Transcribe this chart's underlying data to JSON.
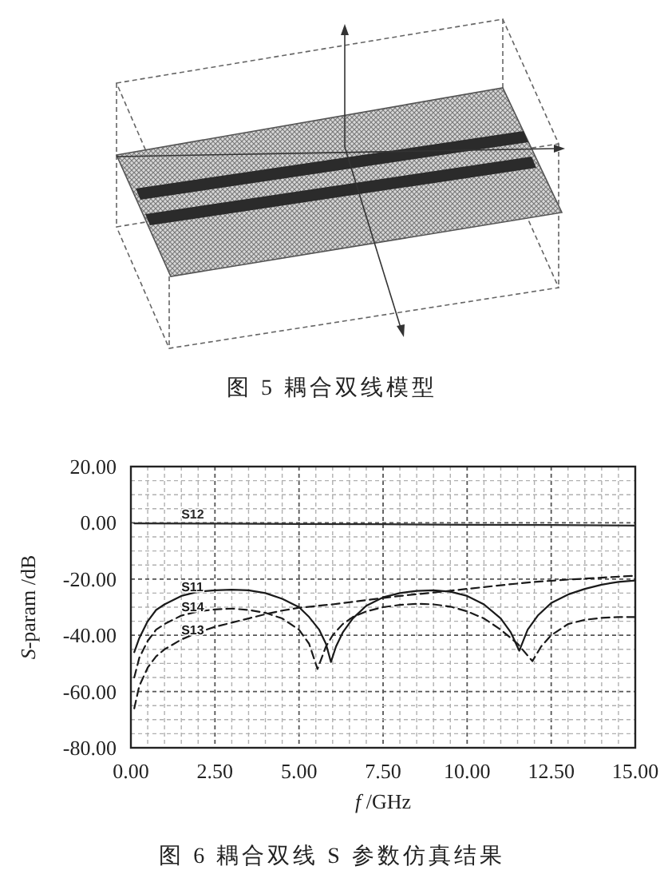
{
  "chart_data": {
    "type": "line",
    "title": "图 6 耦合双线 S 参数仿真结果",
    "xlabel": "f /GHz",
    "ylabel": "S-param /dB",
    "annotations": [
      "图 5 耦合双线模型"
    ],
    "xlim": [
      0,
      15
    ],
    "ylim": [
      -80,
      20
    ],
    "xticks": [
      {
        "value": 0,
        "label": "0.00"
      },
      {
        "value": 0.5,
        "label": null
      },
      {
        "value": 1,
        "label": null
      },
      {
        "value": 1.5,
        "label": null
      },
      {
        "value": 2,
        "label": null
      },
      {
        "value": 2.5,
        "label": "2.50"
      },
      {
        "value": 3,
        "label": null
      },
      {
        "value": 3.5,
        "label": null
      },
      {
        "value": 4,
        "label": null
      },
      {
        "value": 4.5,
        "label": null
      },
      {
        "value": 5,
        "label": "5.00"
      },
      {
        "value": 5.5,
        "label": null
      },
      {
        "value": 6,
        "label": null
      },
      {
        "value": 6.5,
        "label": null
      },
      {
        "value": 7,
        "label": null
      },
      {
        "value": 7.5,
        "label": "7.50"
      },
      {
        "value": 8,
        "label": null
      },
      {
        "value": 8.5,
        "label": null
      },
      {
        "value": 9,
        "label": null
      },
      {
        "value": 9.5,
        "label": null
      },
      {
        "value": 10,
        "label": "10.00"
      },
      {
        "value": 10.5,
        "label": null
      },
      {
        "value": 11,
        "label": null
      },
      {
        "value": 11.5,
        "label": null
      },
      {
        "value": 12,
        "label": null
      },
      {
        "value": 12.5,
        "label": "12.50"
      },
      {
        "value": 13,
        "label": null
      },
      {
        "value": 13.5,
        "label": null
      },
      {
        "value": 14,
        "label": null
      },
      {
        "value": 14.5,
        "label": null
      },
      {
        "value": 15,
        "label": "15.00"
      }
    ],
    "yticks": [
      {
        "value": 20,
        "label": "20.00"
      },
      {
        "value": 15,
        "label": null
      },
      {
        "value": 10,
        "label": null
      },
      {
        "value": 5,
        "label": null
      },
      {
        "value": 0,
        "label": "0.00"
      },
      {
        "value": -5,
        "label": null
      },
      {
        "value": -10,
        "label": null
      },
      {
        "value": -15,
        "label": null
      },
      {
        "value": -20,
        "label": "-20.00"
      },
      {
        "value": -25,
        "label": null
      },
      {
        "value": -30,
        "label": null
      },
      {
        "value": -35,
        "label": null
      },
      {
        "value": -40,
        "label": "-40.00"
      },
      {
        "value": -45,
        "label": null
      },
      {
        "value": -50,
        "label": null
      },
      {
        "value": -55,
        "label": null
      },
      {
        "value": -60,
        "label": "-60.00"
      },
      {
        "value": -65,
        "label": null
      },
      {
        "value": -70,
        "label": null
      },
      {
        "value": -75,
        "label": null
      },
      {
        "value": -80,
        "label": "-80.00"
      }
    ],
    "grid": true,
    "series": [
      {
        "name": "S12",
        "color": "#2a2a2a",
        "line_style": "solid",
        "x": [
          0.1,
          2.5,
          5,
          7.5,
          10,
          12.5,
          15
        ],
        "values": [
          -0.2,
          -0.3,
          -0.4,
          -0.5,
          -0.7,
          -0.8,
          -1.0
        ]
      },
      {
        "name": "S11",
        "color": "#1a1a1a",
        "line_style": "solid",
        "x": [
          0.1,
          0.25,
          0.5,
          0.75,
          1.0,
          1.5,
          2.0,
          2.5,
          3.0,
          3.5,
          4.0,
          4.5,
          5.0,
          5.3,
          5.6,
          5.8,
          5.95,
          6.1,
          6.3,
          6.6,
          7.0,
          7.5,
          8.0,
          8.5,
          9.0,
          9.5,
          10.0,
          10.5,
          11.0,
          11.3,
          11.55,
          11.8,
          12.1,
          12.5,
          13.0,
          13.5,
          14.0,
          14.5,
          15.0
        ],
        "values": [
          -46,
          -41,
          -35,
          -31,
          -29,
          -26,
          -24.5,
          -24,
          -23.8,
          -24,
          -25,
          -27,
          -30,
          -33.5,
          -38,
          -43,
          -49.5,
          -44,
          -39,
          -34,
          -29.5,
          -26.5,
          -25,
          -24.2,
          -24,
          -24.5,
          -26,
          -29,
          -34,
          -39,
          -45.5,
          -38,
          -33,
          -28.5,
          -25.5,
          -23.5,
          -22,
          -21,
          -20.5
        ]
      },
      {
        "name": "S14",
        "color": "#1a1a1a",
        "line_style": "dashed",
        "x": [
          0.1,
          0.25,
          0.5,
          0.75,
          1.0,
          1.5,
          2.0,
          2.5,
          3.0,
          3.5,
          4.0,
          4.5,
          5.0,
          5.3,
          5.55,
          5.8,
          6.0,
          6.3,
          6.6,
          7.0,
          7.5,
          8.0,
          8.5,
          9.0,
          9.5,
          10.0,
          10.5,
          11.0,
          11.5,
          11.94,
          12.2,
          12.5,
          13.0,
          13.5,
          14.0,
          14.5,
          15.0
        ],
        "values": [
          -55,
          -48,
          -42,
          -38,
          -36,
          -33,
          -31.5,
          -30.8,
          -30.5,
          -31,
          -32,
          -34,
          -38,
          -43,
          -52,
          -44,
          -40,
          -36,
          -33.5,
          -31.5,
          -30,
          -29.2,
          -28.8,
          -29,
          -29.8,
          -31.5,
          -34,
          -38,
          -43,
          -49.2,
          -44,
          -40,
          -36,
          -34.5,
          -33.8,
          -33.5,
          -33.5
        ]
      },
      {
        "name": "S13",
        "color": "#1a1a1a",
        "line_style": "dashed",
        "x": [
          0.1,
          0.25,
          0.5,
          0.75,
          1.0,
          1.5,
          2.0,
          2.5,
          3.0,
          3.5,
          4.0,
          4.5,
          5.0,
          6.0,
          7.0,
          8.0,
          9.0,
          10.0,
          11.0,
          12.0,
          13.0,
          14.0,
          15.0
        ],
        "values": [
          -66,
          -58,
          -51.5,
          -47.5,
          -45,
          -41.5,
          -39,
          -37,
          -35.5,
          -34,
          -32.5,
          -31.2,
          -30.2,
          -29,
          -27.5,
          -26,
          -24.8,
          -23.5,
          -22.2,
          -21,
          -20.2,
          -19.5,
          -18.8
        ]
      }
    ]
  }
}
